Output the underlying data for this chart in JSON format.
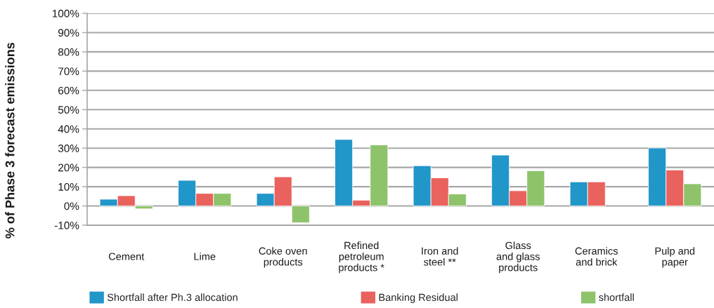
{
  "chart_data": {
    "type": "bar",
    "ylabel": "% of Phase 3 forecast emissions",
    "categories": [
      "Cement",
      "Lime",
      "Coke oven\nproducts",
      "Refined\npetroleum\nproducts *",
      "Iron and\nsteel **",
      "Glass\nand glass\nproducts",
      "Ceramics\nand brick",
      "Pulp and\npaper"
    ],
    "series": [
      {
        "name": "Shortfall after Ph.3 allocation",
        "color": "#2196c9",
        "values": [
          3.5,
          13.3,
          6.5,
          34.5,
          20.9,
          26.4,
          12.5,
          30.1
        ]
      },
      {
        "name": "Banking Residual",
        "color": "#ea625d",
        "values": [
          5.3,
          6.5,
          15.1,
          3.0,
          14.6,
          7.9,
          12.5,
          18.7
        ]
      },
      {
        "name": "shortfall",
        "color": "#8fc36b",
        "values": [
          -1.5,
          6.5,
          -8.7,
          31.7,
          6.2,
          18.3,
          null,
          11.5
        ]
      }
    ],
    "ylim": [
      -10,
      100
    ],
    "yticks": [
      {
        "value": -10,
        "label": "-10%"
      },
      {
        "value": 0,
        "label": "0%"
      },
      {
        "value": 10,
        "label": "10%"
      },
      {
        "value": 20,
        "label": "20%"
      },
      {
        "value": 30,
        "label": "30%"
      },
      {
        "value": 40,
        "label": "40%"
      },
      {
        "value": 50,
        "label": "50%"
      },
      {
        "value": 60,
        "label": "60%"
      },
      {
        "value": 70,
        "label": "70%"
      },
      {
        "value": 80,
        "label": "80%"
      },
      {
        "value": 90,
        "label": "90%"
      },
      {
        "value": 100,
        "label": "100%"
      }
    ],
    "grid": "y",
    "legend": "bottom"
  }
}
